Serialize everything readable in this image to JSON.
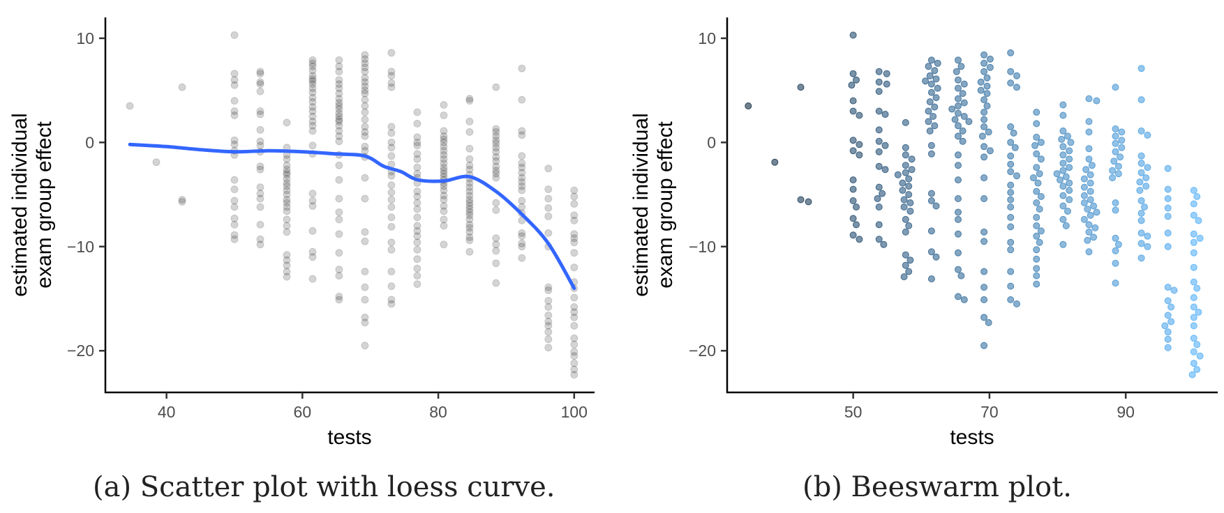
{
  "figure": {
    "caption_a": "(a) Scatter plot with loess curve.",
    "caption_b": "(b) Beeswarm plot."
  },
  "chart_data": [
    {
      "type": "scatter",
      "id": "a",
      "xlabel": "tests",
      "ylabel_line1": "estimated individual",
      "ylabel_line2": "exam group effect",
      "xlim": [
        31,
        103
      ],
      "ylim": [
        -24,
        12
      ],
      "x_ticks": [
        40,
        60,
        80,
        100
      ],
      "y_ticks": [
        10,
        0,
        -10,
        -20
      ],
      "y_tick_labels": [
        "10",
        "0",
        "−10",
        "−20"
      ],
      "grid": false,
      "point_color": "#000000",
      "point_alpha": 0.17,
      "loess_color": "#3366FF",
      "columns": [
        {
          "x": 34.6,
          "y": [
            3.5
          ]
        },
        {
          "x": 38.5,
          "y": [
            -1.9
          ]
        },
        {
          "x": 42.3,
          "y": [
            5.3,
            -5.5,
            -5.7
          ]
        },
        {
          "x": 50.0,
          "y": [
            10.3,
            6.6,
            6.0,
            5.5,
            4.0,
            3.0,
            2.6,
            0.2,
            -0.2,
            -0.8,
            -1.2,
            -3.6,
            -4.5,
            -5.6,
            -6.2,
            -7.3,
            -7.9,
            -8.9,
            -9.3
          ]
        },
        {
          "x": 53.8,
          "y": [
            6.8,
            6.6,
            5.8,
            5.6,
            4.9,
            3.0,
            2.7,
            1.2,
            0.1,
            -0.3,
            -0.9,
            -2.3,
            -2.6,
            -4.3,
            -4.9,
            -5.4,
            -6.2,
            -7.9,
            -9.3,
            -9.8
          ]
        },
        {
          "x": 57.7,
          "y": [
            1.9,
            -0.5,
            -1.2,
            -1.6,
            -2.2,
            -2.6,
            -2.9,
            -3.1,
            -3.5,
            -3.9,
            -4.2,
            -4.6,
            -5.0,
            -5.5,
            -5.8,
            -6.2,
            -6.6,
            -7.4,
            -8.0,
            -8.6,
            -10.8,
            -11.3,
            -11.8,
            -12.4,
            -12.9
          ]
        },
        {
          "x": 61.5,
          "y": [
            7.9,
            7.6,
            7.3,
            6.9,
            6.4,
            6.1,
            5.9,
            5.6,
            5.2,
            4.8,
            4.3,
            3.9,
            3.4,
            3.0,
            2.5,
            2.0,
            1.6,
            1.1,
            -0.3,
            -1.1,
            -4.9,
            -5.6,
            -6.1,
            -8.5,
            -10.5,
            -11.0,
            -13.1
          ]
        },
        {
          "x": 65.4,
          "y": [
            7.9,
            7.3,
            6.8,
            6.0,
            5.6,
            5.2,
            4.7,
            4.2,
            3.8,
            3.5,
            3.2,
            2.8,
            2.5,
            2.2,
            2.0,
            1.6,
            1.1,
            0.6,
            0.1,
            -1.2,
            -2.2,
            -3.6,
            -5.4,
            -6.7,
            -7.4,
            -8.8,
            -10.6,
            -12.2,
            -12.8,
            -14.8,
            -15.1
          ]
        },
        {
          "x": 69.2,
          "y": [
            8.4,
            8.0,
            7.6,
            7.2,
            6.8,
            6.2,
            5.8,
            5.4,
            5.0,
            4.7,
            4.1,
            3.5,
            2.9,
            2.2,
            1.5,
            1.0,
            0.6,
            -0.4,
            -0.8,
            -1.4,
            -3.4,
            -5.4,
            -8.6,
            -9.5,
            -12.4,
            -13.9,
            -15.1,
            -16.8,
            -17.3,
            -19.5
          ]
        },
        {
          "x": 73.1,
          "y": [
            8.6,
            6.8,
            6.4,
            5.7,
            5.3,
            1.5,
            0.9,
            0.0,
            -0.5,
            -1.3,
            -2.1,
            -2.8,
            -3.2,
            -4.1,
            -4.8,
            -5.5,
            -6.2,
            -7.2,
            -8.1,
            -9.6,
            -10.3,
            -12.4,
            -13.8,
            -15.1,
            -15.5
          ]
        },
        {
          "x": 76.9,
          "y": [
            2.9,
            1.8,
            0.5,
            0.0,
            -0.3,
            -1.1,
            -1.6,
            -2.4,
            -3.0,
            -3.4,
            -3.9,
            -4.7,
            -5.2,
            -5.8,
            -6.4,
            -7.2,
            -8.0,
            -8.5,
            -9.0,
            -9.6,
            -10.3,
            -11.2,
            -12.1,
            -12.8,
            -13.6
          ]
        },
        {
          "x": 80.8,
          "y": [
            3.6,
            2.6,
            1.1,
            0.6,
            0.3,
            0.0,
            -0.4,
            -0.8,
            -1.2,
            -1.6,
            -2.0,
            -2.4,
            -2.7,
            -3.0,
            -3.3,
            -3.6,
            -3.9,
            -4.2,
            -4.6,
            -5.1,
            -5.5,
            -6.1,
            -6.6,
            -7.4,
            -8.0,
            -9.8
          ]
        },
        {
          "x": 84.6,
          "y": [
            4.2,
            4.0,
            2.0,
            1.0,
            -0.6,
            -1.6,
            -2.2,
            -2.6,
            -3.1,
            -3.5,
            -3.9,
            -4.3,
            -4.7,
            -5.1,
            -5.5,
            -5.8,
            -6.1,
            -6.4,
            -6.7,
            -7.0,
            -7.4,
            -7.9,
            -8.2,
            -8.6,
            -9.1,
            -9.4,
            -10.5
          ]
        },
        {
          "x": 88.5,
          "y": [
            5.3,
            1.3,
            1.0,
            0.6,
            0.2,
            -0.1,
            -0.5,
            -0.9,
            -1.4,
            -1.8,
            -2.3,
            -2.7,
            -3.0,
            -3.4,
            -5.8,
            -6.5,
            -9.2,
            -9.8,
            -10.4,
            -11.6,
            -13.5
          ]
        },
        {
          "x": 92.3,
          "y": [
            7.1,
            4.1,
            1.1,
            0.7,
            -1.3,
            -2.0,
            -2.4,
            -2.9,
            -3.4,
            -3.8,
            -4.2,
            -4.6,
            -5.6,
            -6.2,
            -6.8,
            -7.5,
            -8.7,
            -9.0,
            -9.7,
            -10.0,
            -11.1
          ]
        },
        {
          "x": 96.2,
          "y": [
            -2.5,
            -4.5,
            -5.4,
            -6.3,
            -7.1,
            -8.7,
            -10.0,
            -13.9,
            -14.2,
            -15.2,
            -15.8,
            -16.6,
            -17.2,
            -17.6,
            -18.2,
            -18.9,
            -19.7
          ]
        },
        {
          "x": 100.0,
          "y": [
            -4.6,
            -5.2,
            -5.9,
            -7.0,
            -7.5,
            -8.8,
            -9.2,
            -9.6,
            -10.6,
            -12.0,
            -13.4,
            -14.0,
            -14.9,
            -15.8,
            -16.3,
            -16.8,
            -17.6,
            -18.8,
            -19.4,
            -20.1,
            -20.5,
            -21.2,
            -21.8,
            -22.3
          ]
        }
      ],
      "loess": {
        "x": [
          34.6,
          40,
          45,
          50,
          55,
          60,
          65,
          69.2,
          72,
          74.5,
          77,
          80.8,
          84.6,
          88.5,
          92.3,
          96.2,
          100
        ],
        "y": [
          -0.2,
          -0.4,
          -0.7,
          -0.9,
          -0.8,
          -0.9,
          -1.1,
          -1.3,
          -2.3,
          -2.8,
          -3.6,
          -3.7,
          -3.3,
          -4.7,
          -6.9,
          -9.7,
          -14.0
        ]
      }
    },
    {
      "type": "scatter",
      "id": "b",
      "xlabel": "tests",
      "ylabel_line1": "estimated individual",
      "ylabel_line2": "exam group effect",
      "xlim": [
        31.5,
        103.5
      ],
      "ylim": [
        -24,
        12
      ],
      "x_ticks": [
        50,
        70,
        90
      ],
      "y_ticks": [
        10,
        0,
        -10,
        -20
      ],
      "y_tick_labels": [
        "10",
        "0",
        "−10",
        "−20"
      ],
      "grid": false,
      "color_low": "#132B43",
      "color_high": "#56B1F7",
      "point_alpha": 0.6
    }
  ]
}
